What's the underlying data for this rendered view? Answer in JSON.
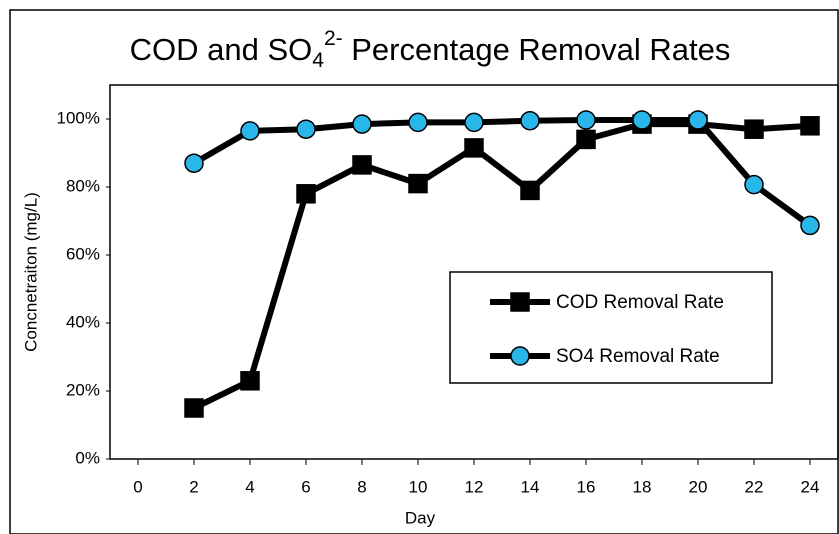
{
  "chart_data": {
    "type": "line",
    "title_parts": {
      "main": "COD and SO",
      "subscript": "4",
      "superscript": "2-",
      "rest": " Percentage Removal Rates"
    },
    "x_label": "Day",
    "y_label": "Concnetraiton (mg/L)",
    "x": [
      2,
      4,
      6,
      8,
      10,
      12,
      14,
      16,
      18,
      20,
      22,
      24
    ],
    "xlim": [
      -1,
      25
    ],
    "xticks": [
      0,
      2,
      4,
      6,
      8,
      10,
      12,
      14,
      16,
      18,
      20,
      22,
      24
    ],
    "ylim": [
      0,
      110
    ],
    "yticks": [
      {
        "value": 0,
        "label": "0%"
      },
      {
        "value": 20,
        "label": "20%"
      },
      {
        "value": 40,
        "label": "40%"
      },
      {
        "value": 60,
        "label": "60%"
      },
      {
        "value": 80,
        "label": "80%"
      },
      {
        "value": 100,
        "label": "100%"
      }
    ],
    "grid": false,
    "series": [
      {
        "name": "COD Removal Rate",
        "color": "#000000",
        "marker": "square",
        "marker_color": "#000000",
        "values": [
          15,
          23,
          78,
          86.5,
          81,
          91.5,
          79,
          94,
          98.5,
          98.5,
          97,
          98
        ]
      },
      {
        "name": "SO4 Removal Rate",
        "color": "#000000",
        "marker": "circle",
        "marker_color": "#29b6e8",
        "values": [
          87,
          96.5,
          97,
          98.5,
          99,
          99,
          99.5,
          99.7,
          99.7,
          99.7,
          80.7,
          68.7
        ]
      }
    ]
  }
}
